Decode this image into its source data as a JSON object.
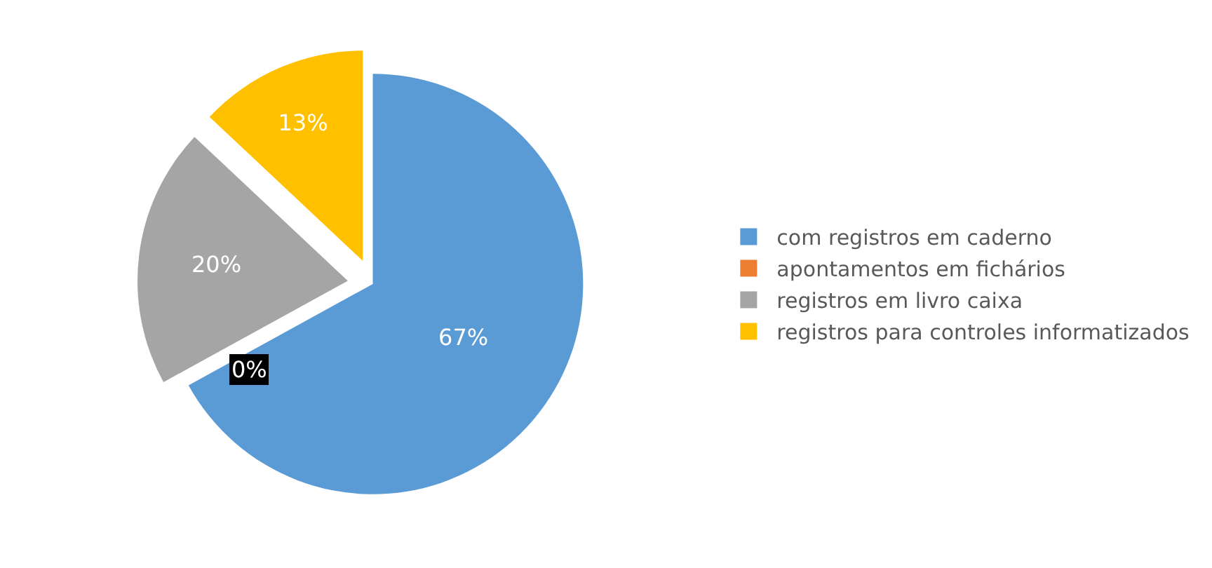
{
  "chart_data": {
    "type": "pie",
    "categories": [
      "com registros em caderno",
      "apontamentos em fichários",
      "registros em livro caixa",
      "registros para controles informatizados"
    ],
    "values": [
      67,
      0,
      20,
      13
    ],
    "colors": [
      "#5b9bd5",
      "#ed7d31",
      "#a5a5a5",
      "#ffc000"
    ],
    "value_labels": [
      "67%",
      "0%",
      "20%",
      "13%"
    ],
    "legend": "right"
  }
}
